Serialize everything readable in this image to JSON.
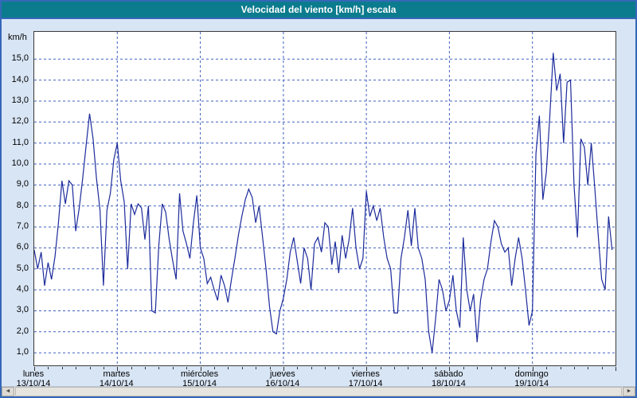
{
  "window": {
    "title": "Velocidad del viento [km/h] escala"
  },
  "colors": {
    "titlebar_teal": "#0b7c8e",
    "border_blue": "#3568b8",
    "panel_background": "#d8e5f5",
    "grid_blue": "#4060c0",
    "series_navy": "#1c2b9b"
  },
  "scrollbar": {
    "left_arrow": "◄",
    "right_arrow": "►"
  },
  "chart_data": {
    "type": "line",
    "title": "Velocidad del viento [km/h] escala",
    "xlabel": "",
    "ylabel": "km/h",
    "ylim": [
      0.4,
      16.3
    ],
    "grid": true,
    "legend_position": "none",
    "points_per_day": 24,
    "series": [
      {
        "name": "Velocidad del viento",
        "color": "#1c2b9b"
      }
    ],
    "y_ticks": [
      {
        "v": 15,
        "label": "15,0"
      },
      {
        "v": 14,
        "label": "14,0"
      },
      {
        "v": 13,
        "label": "13,0"
      },
      {
        "v": 12,
        "label": "12,0"
      },
      {
        "v": 11,
        "label": "11,0"
      },
      {
        "v": 10,
        "label": "10,0"
      },
      {
        "v": 9,
        "label": "9,0"
      },
      {
        "v": 8,
        "label": "8,0"
      },
      {
        "v": 7,
        "label": "7,0"
      },
      {
        "v": 6,
        "label": "6,0"
      },
      {
        "v": 5,
        "label": "5,0"
      },
      {
        "v": 4,
        "label": "4,0"
      },
      {
        "v": 3,
        "label": "3,0"
      },
      {
        "v": 2,
        "label": "2,0"
      },
      {
        "v": 1,
        "label": "1,0"
      }
    ],
    "x_days": [
      {
        "name": "lunes",
        "date": "13/10/14"
      },
      {
        "name": "martes",
        "date": "14/10/14"
      },
      {
        "name": "miércoles",
        "date": "15/10/14"
      },
      {
        "name": "jueves",
        "date": "16/10/14"
      },
      {
        "name": "viernes",
        "date": "17/10/14"
      },
      {
        "name": "sábado",
        "date": "18/10/14"
      },
      {
        "name": "domingo",
        "date": "19/10/14"
      }
    ],
    "values": [
      5.9,
      5.0,
      5.8,
      4.2,
      5.3,
      4.5,
      5.6,
      7.2,
      9.2,
      8.1,
      9.2,
      9.0,
      6.8,
      7.9,
      9.3,
      10.9,
      12.4,
      11.2,
      9.3,
      7.8,
      4.2,
      7.8,
      8.6,
      10.2,
      11.0,
      9.2,
      8.2,
      5.0,
      8.1,
      7.6,
      8.1,
      7.9,
      6.4,
      8.0,
      3.0,
      2.9,
      6.1,
      8.1,
      7.7,
      6.4,
      5.4,
      4.5,
      8.6,
      6.8,
      6.2,
      5.5,
      7.2,
      8.5,
      6.0,
      5.5,
      4.3,
      4.6,
      4.0,
      3.5,
      4.7,
      4.2,
      3.4,
      4.5,
      5.5,
      6.6,
      7.5,
      8.3,
      8.8,
      8.4,
      7.2,
      8.0,
      6.5,
      5.0,
      3.2,
      2.0,
      1.9,
      3.0,
      3.6,
      4.5,
      5.8,
      6.5,
      5.4,
      4.3,
      6.0,
      5.5,
      4.0,
      6.2,
      6.5,
      5.8,
      7.2,
      7.0,
      5.2,
      6.3,
      4.8,
      6.6,
      5.5,
      6.4,
      7.9,
      6.0,
      5.0,
      5.5,
      8.7,
      7.5,
      8.0,
      7.3,
      7.9,
      6.5,
      5.5,
      5.0,
      2.9,
      2.9,
      5.5,
      6.5,
      7.8,
      6.1,
      7.9,
      6.0,
      5.5,
      4.5,
      2.0,
      1.0,
      2.6,
      4.5,
      4.0,
      3.0,
      3.5,
      4.7,
      3.0,
      2.2,
      6.5,
      4.0,
      3.0,
      3.8,
      1.5,
      3.5,
      4.5,
      5.0,
      6.3,
      7.3,
      7.0,
      6.2,
      5.8,
      6.0,
      4.2,
      5.5,
      6.5,
      5.5,
      4.0,
      2.3,
      3.0,
      10.5,
      12.3,
      8.3,
      9.6,
      12.2,
      15.3,
      13.5,
      14.3,
      11.0,
      13.9,
      14.0,
      9.0,
      6.5,
      11.2,
      10.8,
      9.0,
      11.0,
      8.9,
      6.6,
      4.5,
      4.0,
      7.5,
      5.9
    ]
  }
}
